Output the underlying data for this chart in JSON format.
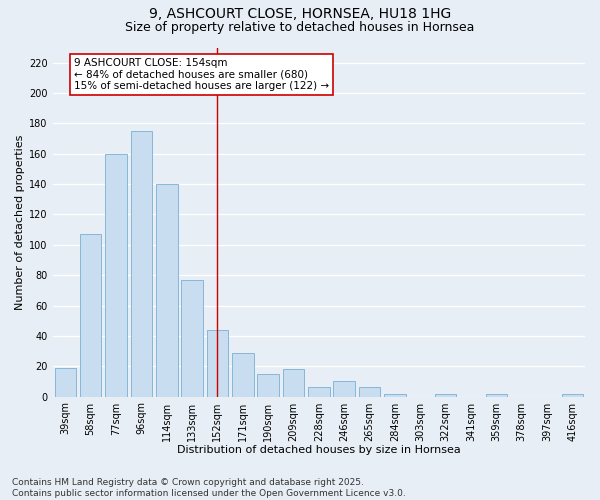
{
  "title1": "9, ASHCOURT CLOSE, HORNSEA, HU18 1HG",
  "title2": "Size of property relative to detached houses in Hornsea",
  "xlabel": "Distribution of detached houses by size in Hornsea",
  "ylabel": "Number of detached properties",
  "categories": [
    "39sqm",
    "58sqm",
    "77sqm",
    "96sqm",
    "114sqm",
    "133sqm",
    "152sqm",
    "171sqm",
    "190sqm",
    "209sqm",
    "228sqm",
    "246sqm",
    "265sqm",
    "284sqm",
    "303sqm",
    "322sqm",
    "341sqm",
    "359sqm",
    "378sqm",
    "397sqm",
    "416sqm"
  ],
  "values": [
    19,
    107,
    160,
    175,
    140,
    77,
    44,
    29,
    15,
    18,
    6,
    10,
    6,
    2,
    0,
    2,
    0,
    2,
    0,
    0,
    2
  ],
  "bar_color": "#c9ddf0",
  "bar_edge_color": "#7aafd4",
  "vline_x": 6,
  "vline_color": "#cc0000",
  "annotation_line1": "9 ASHCOURT CLOSE: 154sqm",
  "annotation_line2": "← 84% of detached houses are smaller (680)",
  "annotation_line3": "15% of semi-detached houses are larger (122) →",
  "annotation_box_color": "white",
  "annotation_box_edge_color": "#cc0000",
  "ylim": [
    0,
    230
  ],
  "yticks": [
    0,
    20,
    40,
    60,
    80,
    100,
    120,
    140,
    160,
    180,
    200,
    220
  ],
  "footer1": "Contains HM Land Registry data © Crown copyright and database right 2025.",
  "footer2": "Contains public sector information licensed under the Open Government Licence v3.0.",
  "background_color": "#e8eef5",
  "grid_color": "#ffffff",
  "title_fontsize": 10,
  "subtitle_fontsize": 9,
  "axis_label_fontsize": 8,
  "tick_fontsize": 7,
  "annotation_fontsize": 7.5,
  "footer_fontsize": 6.5
}
